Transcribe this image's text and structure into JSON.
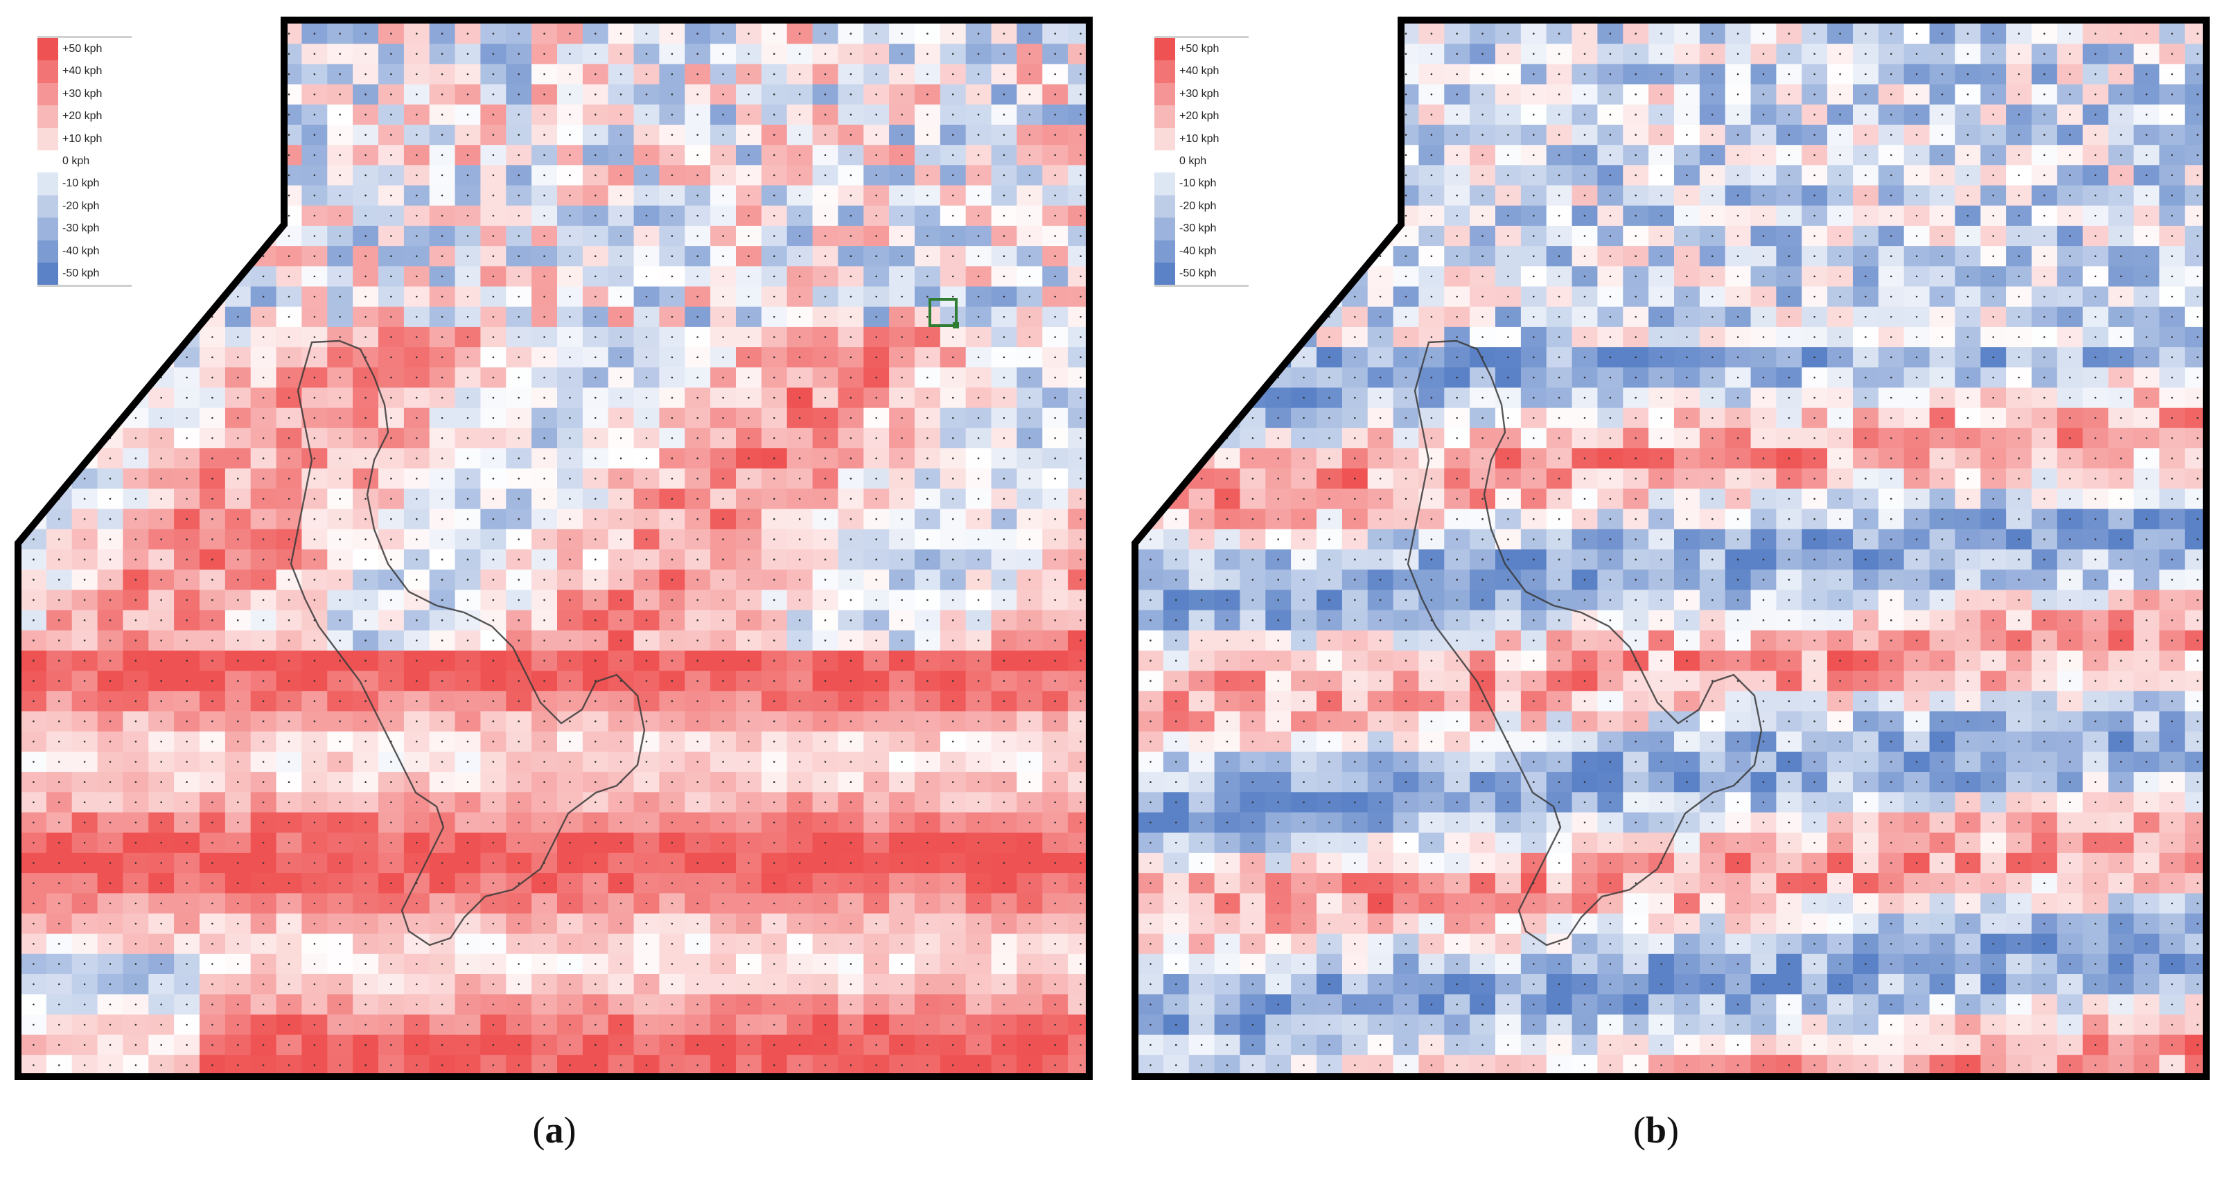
{
  "figure": {
    "panels": [
      {
        "id": "a",
        "label_open": "(",
        "label_letter": "a",
        "label_close": ")"
      },
      {
        "id": "b",
        "label_open": "(",
        "label_letter": "b",
        "label_close": ")"
      }
    ],
    "legend": {
      "entries": [
        {
          "label": "+50 kph",
          "value": 50,
          "color": "#ef5252"
        },
        {
          "label": "+40 kph",
          "value": 40,
          "color": "#f27474"
        },
        {
          "label": "+30 kph",
          "value": 30,
          "color": "#f59595"
        },
        {
          "label": "+20 kph",
          "value": 20,
          "color": "#f8b8b8"
        },
        {
          "label": "+10 kph",
          "value": 10,
          "color": "#fbdada"
        },
        {
          "label": "0 kph",
          "value": 0,
          "color": "#ffffff"
        },
        {
          "label": "-10 kph",
          "value": -10,
          "color": "#dde6f3"
        },
        {
          "label": "-20 kph",
          "value": -20,
          "color": "#bdcde8"
        },
        {
          "label": "-30 kph",
          "value": -30,
          "color": "#9cb4dd"
        },
        {
          "label": "-40 kph",
          "value": -40,
          "color": "#7c9bd2"
        },
        {
          "label": "-50 kph",
          "value": -50,
          "color": "#5b82c7"
        }
      ]
    },
    "colors": {
      "border": "#000000",
      "coastline": "#3a3a3a",
      "highlight": "#2e7d32",
      "background": "#ffffff"
    }
  }
}
